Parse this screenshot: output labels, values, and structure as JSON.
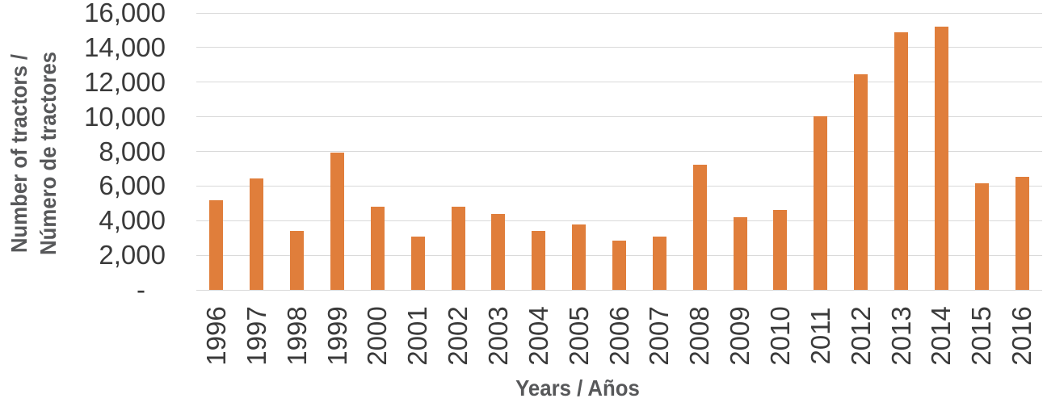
{
  "chart_data": {
    "type": "bar",
    "title": "",
    "xlabel": "Years / Años",
    "ylabel": "Number of tractors / Número de tractores",
    "ylabel_lines": [
      "Number of tractors /",
      "Número de tractores"
    ],
    "categories": [
      "1996",
      "1997",
      "1998",
      "1999",
      "2000",
      "2001",
      "2002",
      "2003",
      "2004",
      "2005",
      "2006",
      "2007",
      "2008",
      "2009",
      "2010",
      "2011",
      "2012",
      "2013",
      "2014",
      "2015",
      "2016"
    ],
    "values": [
      5200,
      6450,
      3400,
      7950,
      4800,
      3100,
      4800,
      4400,
      3400,
      3800,
      2850,
      3100,
      7250,
      4200,
      4600,
      10050,
      12450,
      14900,
      15200,
      6150,
      6550
    ],
    "ylim": [
      0,
      16000
    ],
    "ytick_step": 2000,
    "yticks": [
      {
        "label": "16,000",
        "value": 16000
      },
      {
        "label": "14,000",
        "value": 14000
      },
      {
        "label": "12,000",
        "value": 12000
      },
      {
        "label": "10,000",
        "value": 10000
      },
      {
        "label": "8,000",
        "value": 8000
      },
      {
        "label": "6,000",
        "value": 6000
      },
      {
        "label": "4,000",
        "value": 4000
      },
      {
        "label": "2,000",
        "value": 2000
      },
      {
        "label": "-",
        "value": 0
      }
    ],
    "grid": true,
    "legend_position": "none",
    "colors": {
      "bar": "#E07E3B",
      "gridline": "#D9D9D9",
      "tick_text": "#3A3A3A",
      "axis_title_text": "#57585A",
      "background": "#FFFFFF"
    }
  }
}
